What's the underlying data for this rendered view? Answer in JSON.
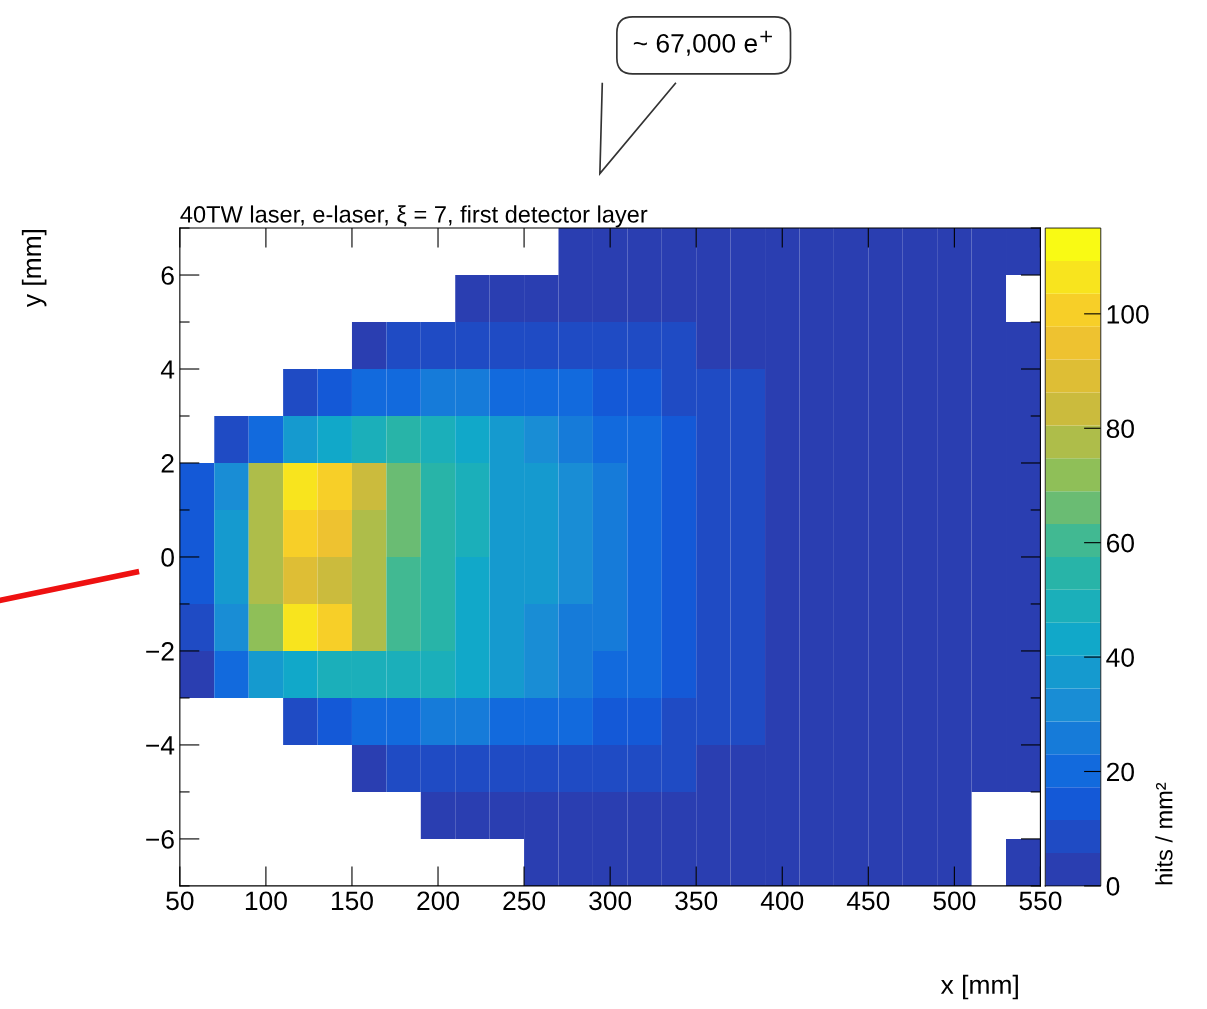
{
  "chart_data": {
    "type": "heatmap",
    "title": "40TW laser, e-laser, ξ = 7, first detector layer",
    "xlabel": "x [mm]",
    "ylabel": "y [mm]",
    "clabel": "hits / mm²",
    "annotations": [
      "~ 67,000 e$^{+}$"
    ],
    "x": [
      60,
      80,
      100,
      120,
      140,
      160,
      180,
      200,
      220,
      240,
      260,
      280,
      300,
      320,
      340,
      360,
      380,
      400,
      420,
      440,
      460,
      480,
      500,
      520,
      540
    ],
    "cells": [
      [
        null,
        null,
        null,
        null,
        null,
        null,
        null,
        null,
        null,
        null,
        null,
        1,
        1,
        1,
        2,
        2,
        2,
        1,
        1,
        1,
        1,
        1,
        1,
        1,
        1
      ],
      [
        null,
        null,
        null,
        null,
        null,
        null,
        null,
        null,
        1,
        3,
        4,
        5,
        5,
        5,
        4,
        4,
        3,
        2,
        2,
        1,
        1,
        1,
        1,
        1,
        null
      ],
      [
        null,
        null,
        null,
        null,
        null,
        3,
        8,
        10,
        10,
        10,
        10,
        9,
        8,
        7,
        6,
        5,
        4,
        3,
        2,
        2,
        1,
        1,
        1,
        1,
        1
      ],
      [
        null,
        null,
        null,
        6,
        15,
        20,
        22,
        24,
        24,
        22,
        20,
        18,
        15,
        12,
        10,
        8,
        6,
        4,
        3,
        2,
        2,
        1,
        1,
        1,
        1
      ],
      [
        null,
        8,
        22,
        35,
        45,
        50,
        52,
        48,
        42,
        38,
        32,
        28,
        22,
        18,
        14,
        10,
        7,
        5,
        3,
        2,
        2,
        1,
        1,
        1,
        1
      ],
      [
        12,
        30,
        75,
        105,
        100,
        85,
        65,
        55,
        48,
        40,
        35,
        30,
        25,
        20,
        16,
        10,
        6,
        4,
        3,
        2,
        2,
        1,
        1,
        1,
        1
      ],
      [
        12,
        35,
        80,
        100,
        95,
        80,
        65,
        55,
        48,
        40,
        35,
        30,
        25,
        20,
        16,
        10,
        7,
        5,
        3,
        2,
        2,
        1,
        1,
        1,
        1
      ],
      [
        12,
        40,
        75,
        90,
        85,
        75,
        62,
        52,
        45,
        40,
        35,
        30,
        25,
        20,
        16,
        10,
        7,
        5,
        3,
        2,
        2,
        1,
        1,
        1,
        1
      ],
      [
        8,
        30,
        70,
        105,
        100,
        80,
        60,
        52,
        45,
        40,
        33,
        28,
        23,
        18,
        15,
        10,
        6,
        4,
        3,
        2,
        2,
        1,
        1,
        1,
        1
      ],
      [
        5,
        18,
        35,
        42,
        48,
        50,
        50,
        48,
        42,
        38,
        32,
        28,
        22,
        18,
        14,
        10,
        7,
        5,
        3,
        2,
        2,
        1,
        1,
        1,
        1
      ],
      [
        null,
        null,
        null,
        6,
        15,
        20,
        22,
        24,
        24,
        22,
        20,
        18,
        15,
        12,
        10,
        8,
        6,
        4,
        3,
        2,
        2,
        1,
        1,
        1,
        1
      ],
      [
        null,
        null,
        null,
        null,
        null,
        3,
        8,
        10,
        10,
        10,
        10,
        9,
        8,
        7,
        6,
        5,
        4,
        3,
        2,
        2,
        1,
        1,
        1,
        1,
        1
      ],
      [
        null,
        null,
        null,
        null,
        null,
        null,
        null,
        1,
        2,
        3,
        4,
        4,
        4,
        4,
        3,
        3,
        2,
        2,
        1,
        1,
        1,
        1,
        1,
        null,
        null
      ],
      [
        null,
        null,
        null,
        null,
        null,
        null,
        null,
        null,
        null,
        null,
        1,
        1,
        1,
        2,
        2,
        1,
        1,
        1,
        1,
        1,
        1,
        1,
        1,
        null,
        1
      ]
    ],
    "xlim": [
      50,
      550
    ],
    "ylim": [
      -7,
      7
    ],
    "xticks": [
      50,
      100,
      150,
      200,
      250,
      300,
      350,
      400,
      450,
      500,
      550
    ],
    "yticks": [
      {
        "value": -7,
        "label": null
      },
      {
        "value": -6,
        "label": "−6"
      },
      {
        "value": -5,
        "label": null
      },
      {
        "value": -4,
        "label": "−4"
      },
      {
        "value": -3,
        "label": null
      },
      {
        "value": -2,
        "label": "−2"
      },
      {
        "value": -1,
        "label": null
      },
      0,
      {
        "value": 1,
        "label": null
      },
      2,
      {
        "value": 3,
        "label": null
      },
      4,
      {
        "value": 5,
        "label": null
      },
      6,
      {
        "value": 7,
        "label": null
      }
    ],
    "clim": [
      0,
      115
    ],
    "cticks": [
      0,
      20,
      40,
      60,
      80,
      100
    ],
    "grid": false
  }
}
